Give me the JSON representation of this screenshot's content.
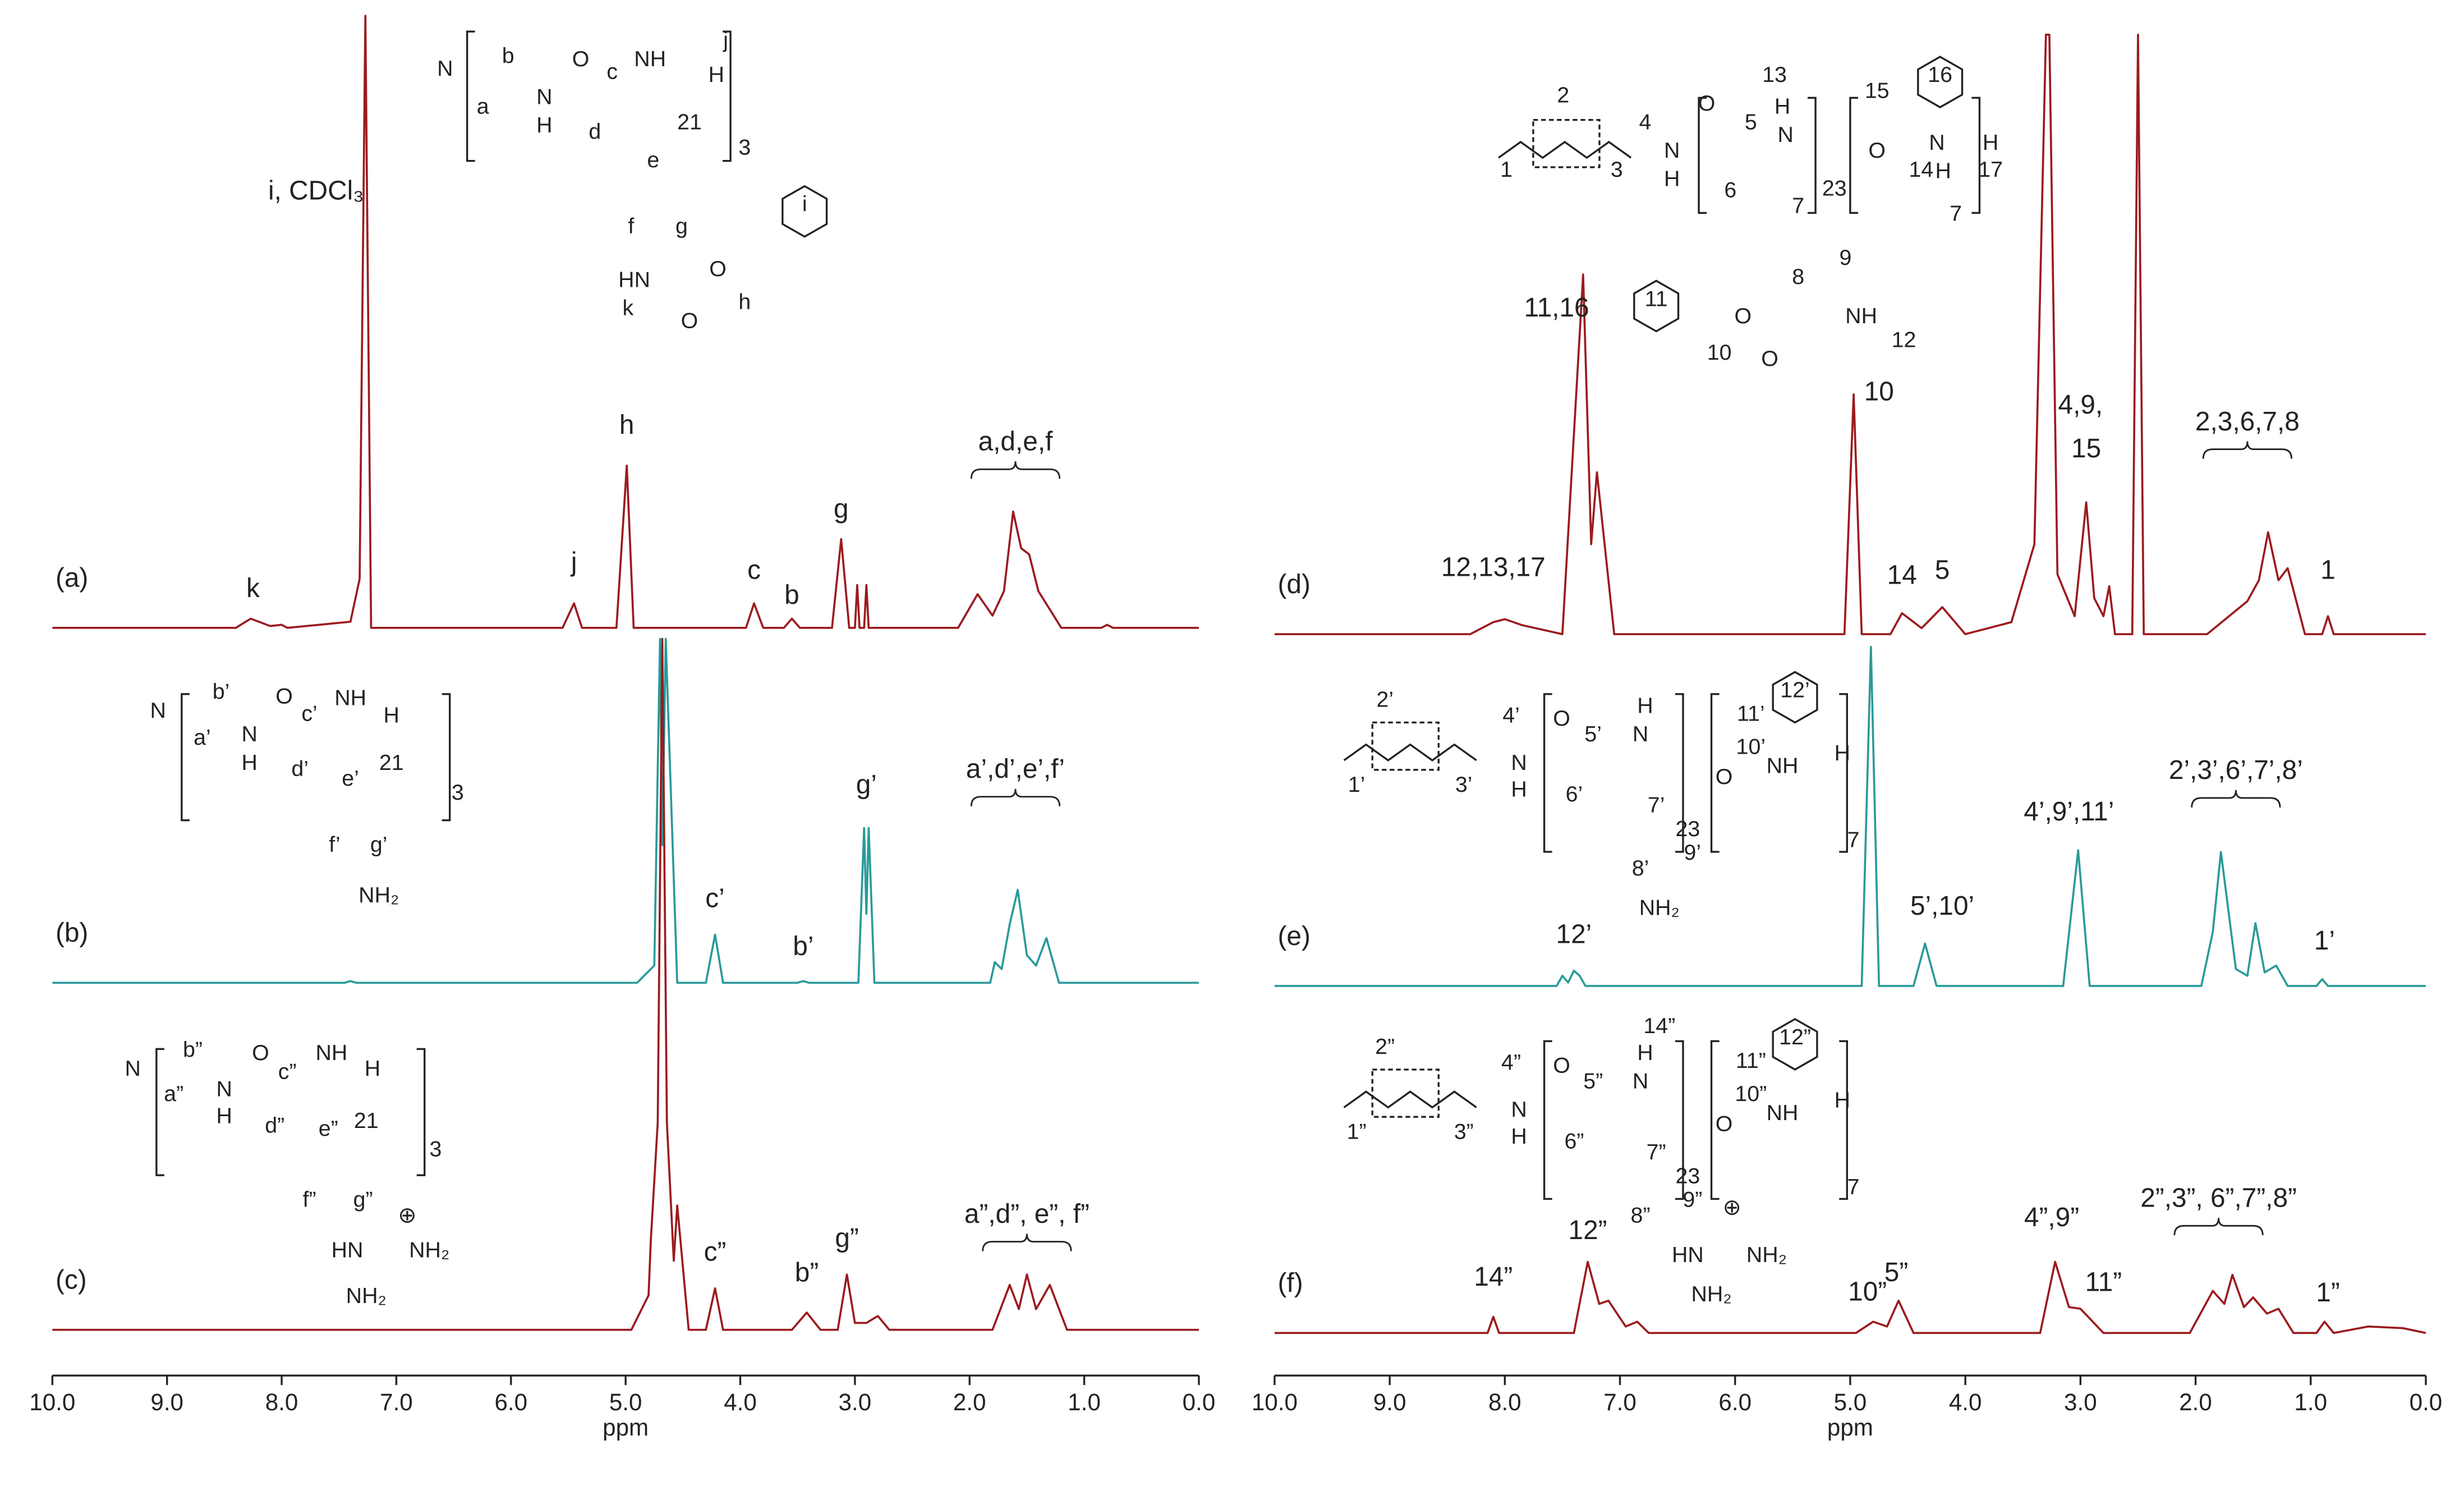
{
  "chart_data": [
    {
      "type": "line",
      "xlim": [
        10,
        0
      ],
      "ylim": [
        0,
        100
      ],
      "x": [
        10,
        8.4,
        8.27,
        8.1,
        8.0,
        7.95,
        7.4,
        7.32,
        7.27,
        7.22,
        5.55,
        5.45,
        5.38,
        5.08,
        4.99,
        4.93,
        3.95,
        3.88,
        3.8,
        3.62,
        3.55,
        3.48,
        3.2,
        3.12,
        3.05,
        3.0,
        2.98,
        2.96,
        2.92,
        2.9,
        2.88,
        2.1,
        1.93,
        1.8,
        1.7,
        1.62,
        1.55,
        1.48,
        1.4,
        1.3,
        1.2,
        0.85,
        0.8,
        0.75,
        0
      ],
      "series": [
        {
          "name": "(a)",
          "color": "#9b1b1e",
          "values": [
            0,
            0,
            1.5,
            0.3,
            0.5,
            0,
            1,
            8,
            100,
            0,
            0,
            4,
            0,
            0,
            26.5,
            0,
            0,
            4,
            0,
            0,
            1.5,
            0,
            0,
            14.5,
            0,
            0,
            7,
            0,
            0,
            7,
            0,
            0,
            5.5,
            2,
            6,
            19,
            13,
            12,
            6,
            3,
            0,
            0,
            0.5,
            0,
            0
          ]
        }
      ],
      "annotations": [
        {
          "text": "k",
          "x": 8.25,
          "y": 5
        },
        {
          "text": "i, CDCl₃",
          "x": 7.7,
          "y": 70
        },
        {
          "text": "h",
          "x": 4.99,
          "y": 31.7
        },
        {
          "text": "j",
          "x": 5.45,
          "y": 9.3
        },
        {
          "text": "c",
          "x": 3.88,
          "y": 8
        },
        {
          "text": "b",
          "x": 3.55,
          "y": 3.9
        },
        {
          "text": "g",
          "x": 3.12,
          "y": 18
        },
        {
          "text": "a,d,e,f",
          "x": 1.6,
          "y": 29
        }
      ],
      "structure_labels": [
        "N",
        "a",
        "b",
        "N",
        "H",
        "O",
        "c",
        "NH",
        "H",
        "j",
        "d",
        "e",
        "21",
        "3",
        "f",
        "g",
        "HN",
        "k",
        "O",
        "O",
        "h",
        "i"
      ]
    },
    {
      "type": "line",
      "xlim": [
        10,
        0
      ],
      "ylim": [
        0,
        100
      ],
      "x": [
        10,
        7.45,
        7.4,
        7.35,
        4.9,
        4.75,
        4.7,
        4.68,
        4.65,
        4.55,
        4.3,
        4.22,
        4.15,
        3.5,
        3.45,
        3.4,
        2.97,
        2.92,
        2.9,
        2.88,
        2.83,
        1.82,
        1.78,
        1.72,
        1.65,
        1.58,
        1.5,
        1.42,
        1.33,
        1.22,
        0
      ],
      "series": [
        {
          "name": "(b)",
          "color": "#2a9a9a",
          "values": [
            0,
            0,
            0.5,
            0,
            0,
            5,
            100,
            40,
            100,
            0,
            0,
            14,
            0,
            0,
            0.5,
            0,
            0,
            45,
            20,
            45,
            0,
            0,
            6,
            4,
            17,
            27,
            8,
            5,
            13,
            0,
            0
          ]
        }
      ],
      "annotations": [
        {
          "text": "c’",
          "x": 4.22,
          "y": 22
        },
        {
          "text": "b’",
          "x": 3.45,
          "y": 8
        },
        {
          "text": "g’",
          "x": 2.9,
          "y": 55
        },
        {
          "text": "a’,d’,e’,f’",
          "x": 1.6,
          "y": 59.6
        }
      ],
      "structure_labels": [
        "N",
        "a’",
        "b’",
        "N",
        "H",
        "O",
        "c’",
        "NH",
        "H",
        "d’",
        "e’",
        "21",
        "3",
        "f’",
        "g’",
        "NH₂"
      ]
    },
    {
      "type": "line",
      "xlim": [
        10,
        0
      ],
      "ylim": [
        0,
        100
      ],
      "x": [
        10,
        4.95,
        4.8,
        4.78,
        4.72,
        4.68,
        4.64,
        4.58,
        4.55,
        4.45,
        4.3,
        4.22,
        4.15,
        3.55,
        3.42,
        3.3,
        3.15,
        3.07,
        3.0,
        2.9,
        2.8,
        2.7,
        1.8,
        1.65,
        1.57,
        1.5,
        1.42,
        1.3,
        1.15,
        0
      ],
      "series": [
        {
          "name": "(c)",
          "color": "#9b1b1e",
          "values": [
            0,
            0,
            5,
            13,
            30,
            100,
            30,
            10,
            18,
            0,
            0,
            6,
            0,
            0,
            2.5,
            0,
            0,
            8,
            1,
            1,
            2,
            0,
            0,
            6.5,
            3,
            8,
            3,
            6.5,
            0,
            0
          ]
        }
      ],
      "annotations": [
        {
          "text": "c”",
          "x": 4.22,
          "y": 10
        },
        {
          "text": "b”",
          "x": 3.42,
          "y": 7
        },
        {
          "text": "g”",
          "x": 3.07,
          "y": 12
        },
        {
          "text": "a”,d”, e”, f”",
          "x": 1.5,
          "y": 15.5
        }
      ],
      "structure_labels": [
        "N",
        "a”",
        "b”",
        "N",
        "H",
        "O",
        "c”",
        "NH",
        "H",
        "d”",
        "e”",
        "21",
        "3",
        "f”",
        "g”",
        "HN",
        "NH₂",
        "NH₂",
        "⊕"
      ],
      "xticks": [
        {
          "value": 10,
          "label": "10.0"
        },
        {
          "value": 9,
          "label": "9.0"
        },
        {
          "value": 8,
          "label": "8.0"
        },
        {
          "value": 7,
          "label": "7.0"
        },
        {
          "value": 6,
          "label": "6.0"
        },
        {
          "value": 5,
          "label": "5.0"
        },
        {
          "value": 4,
          "label": "4.0"
        },
        {
          "value": 3,
          "label": "3.0"
        },
        {
          "value": 2,
          "label": "2.0"
        },
        {
          "value": 1,
          "label": "1.0"
        },
        {
          "value": 0,
          "label": "0.0"
        }
      ],
      "xlabel": "ppm"
    },
    {
      "type": "line",
      "xlim": [
        10,
        0
      ],
      "ylim": [
        0,
        100
      ],
      "x": [
        10,
        8.3,
        8.1,
        8.0,
        7.85,
        7.5,
        7.32,
        7.25,
        7.2,
        7.05,
        5.05,
        4.97,
        4.9,
        4.65,
        4.55,
        4.38,
        4.2,
        4.0,
        3.6,
        3.4,
        3.3,
        3.27,
        3.2,
        3.05,
        2.95,
        2.88,
        2.8,
        2.75,
        2.7,
        2.55,
        2.5,
        2.45,
        1.9,
        1.55,
        1.45,
        1.37,
        1.28,
        1.2,
        1.05,
        0.9,
        0.85,
        0.8,
        0
      ],
      "series": [
        {
          "name": "(d)",
          "color": "#9b1b1e",
          "values": [
            0,
            0,
            2,
            2.5,
            1.5,
            0,
            60,
            15,
            27,
            0,
            0,
            40,
            0,
            0,
            3.5,
            1,
            4.5,
            0,
            2,
            15,
            100,
            100,
            10,
            3,
            22,
            6,
            3,
            8,
            0,
            0,
            100,
            0,
            0,
            5.5,
            9,
            17,
            9,
            11,
            0,
            0,
            3,
            0,
            0
          ]
        }
      ],
      "annotations": [
        {
          "text": "11,16",
          "x": 7.55,
          "y": 53
        },
        {
          "text": "12,13,17",
          "x": 8.1,
          "y": 9.7
        },
        {
          "text": "10",
          "x": 4.75,
          "y": 39
        },
        {
          "text": "14",
          "x": 4.55,
          "y": 8.4
        },
        {
          "text": "5",
          "x": 4.2,
          "y": 9.2
        },
        {
          "text": "4,9,",
          "x": 3.0,
          "y": 36.8
        },
        {
          "text": "15",
          "x": 2.95,
          "y": 29.5
        },
        {
          "text": "2,3,6,7,8",
          "x": 1.55,
          "y": 34
        },
        {
          "text": "1",
          "x": 0.85,
          "y": 9.2
        }
      ],
      "structure_labels": [
        "2",
        "4",
        "1",
        "3",
        "N",
        "H",
        "O",
        "5",
        "13",
        "H",
        "N",
        "6",
        "7",
        "23",
        "8",
        "9",
        "NH",
        "12",
        "O",
        "14",
        "N",
        "H",
        "H",
        "15",
        "16",
        "17",
        "7",
        "11",
        "10",
        "O",
        "O"
      ]
    },
    {
      "type": "line",
      "xlim": [
        10,
        0
      ],
      "ylim": [
        0,
        100
      ],
      "x": [
        10,
        7.55,
        7.5,
        7.45,
        7.4,
        7.35,
        7.3,
        4.9,
        4.82,
        4.75,
        4.45,
        4.35,
        4.25,
        3.15,
        3.02,
        2.92,
        1.95,
        1.85,
        1.78,
        1.65,
        1.55,
        1.48,
        1.4,
        1.3,
        1.2,
        0.95,
        0.9,
        0.85,
        0
      ],
      "series": [
        {
          "name": "(e)",
          "color": "#2a9a9a",
          "values": [
            0,
            0,
            3,
            1,
            4.5,
            3,
            0,
            0,
            100,
            0,
            0,
            12.5,
            0,
            0,
            40,
            0,
            0,
            16,
            39.5,
            5,
            3,
            18.5,
            4,
            6,
            0,
            0,
            2,
            0,
            0
          ]
        }
      ],
      "annotations": [
        {
          "text": "12’",
          "x": 7.4,
          "y": 12.6
        },
        {
          "text": "5’,10’",
          "x": 4.2,
          "y": 21
        },
        {
          "text": "4’,9’,11’",
          "x": 3.1,
          "y": 48.8
        },
        {
          "text": "2’,3’,6’,7’,8’",
          "x": 1.65,
          "y": 61
        },
        {
          "text": "1’",
          "x": 0.88,
          "y": 10.7
        }
      ],
      "structure_labels": [
        "2’",
        "4’",
        "1’",
        "3’",
        "N",
        "H",
        "O",
        "5’",
        "N",
        "H",
        "6’",
        "7’",
        "23",
        "8’",
        "9’",
        "NH₂",
        "11’",
        "12’",
        "10’",
        "O",
        "NH",
        "H",
        "7"
      ]
    },
    {
      "type": "line",
      "xlim": [
        10,
        0
      ],
      "ylim": [
        0,
        100
      ],
      "x": [
        10,
        8.15,
        8.1,
        8.05,
        7.4,
        7.28,
        7.18,
        7.1,
        6.95,
        6.85,
        6.75,
        4.95,
        4.8,
        4.68,
        4.58,
        4.45,
        3.35,
        3.22,
        3.1,
        3.0,
        2.8,
        2.05,
        1.85,
        1.75,
        1.68,
        1.58,
        1.5,
        1.38,
        1.28,
        1.15,
        0.95,
        0.88,
        0.8,
        0.5,
        0.2,
        0
      ],
      "series": [
        {
          "name": "(f)",
          "color": "#9b1b1e",
          "values": [
            0,
            0,
            5,
            0,
            0,
            22,
            9,
            10,
            2,
            3.5,
            0,
            0,
            3.5,
            2,
            10,
            0,
            0,
            22,
            8,
            7.5,
            0,
            0,
            13,
            9,
            18,
            8,
            11,
            6,
            7.5,
            0,
            0,
            3.5,
            0,
            2,
            1.5,
            0
          ]
        }
      ],
      "annotations": [
        {
          "text": "14”",
          "x": 8.1,
          "y": 14.6
        },
        {
          "text": "12”",
          "x": 7.28,
          "y": 29
        },
        {
          "text": "10”",
          "x": 4.85,
          "y": 10
        },
        {
          "text": "5”",
          "x": 4.6,
          "y": 16
        },
        {
          "text": "4”,9”",
          "x": 3.25,
          "y": 33
        },
        {
          "text": "11”",
          "x": 2.8,
          "y": 13
        },
        {
          "text": "2”,3”, 6”,7”,8”",
          "x": 1.8,
          "y": 39
        },
        {
          "text": "1”",
          "x": 0.85,
          "y": 9.8
        }
      ],
      "structure_labels": [
        "2”",
        "4”",
        "1”",
        "3”",
        "N",
        "H",
        "O",
        "5”",
        "14”",
        "N",
        "H",
        "6”",
        "7”",
        "23",
        "8”",
        "9”",
        "HN",
        "NH₂",
        "NH₂",
        "⊕",
        "11”",
        "12”",
        "10”",
        "O",
        "NH",
        "H",
        "7"
      ],
      "xticks": [
        {
          "value": 10,
          "label": "10.0"
        },
        {
          "value": 9,
          "label": "9.0"
        },
        {
          "value": 8,
          "label": "8.0"
        },
        {
          "value": 7,
          "label": "7.0"
        },
        {
          "value": 6,
          "label": "6.0"
        },
        {
          "value": 5,
          "label": "5.0"
        },
        {
          "value": 4,
          "label": "4.0"
        },
        {
          "value": 3,
          "label": "3.0"
        },
        {
          "value": 2,
          "label": "2.0"
        },
        {
          "value": 1,
          "label": "1.0"
        },
        {
          "value": 0,
          "label": "0.0"
        }
      ],
      "xlabel": "ppm"
    }
  ]
}
